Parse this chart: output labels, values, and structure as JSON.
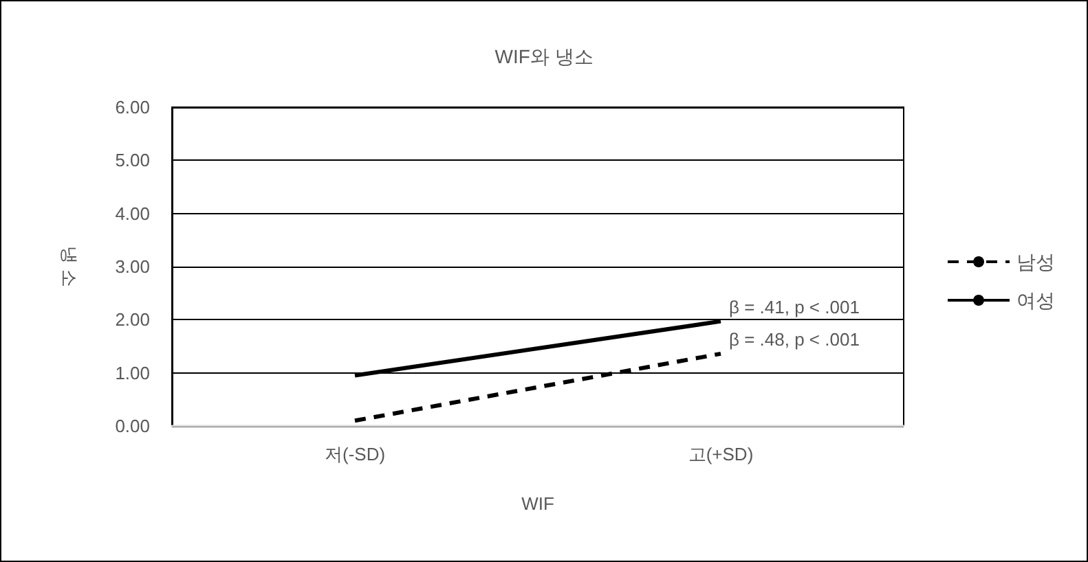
{
  "chart_data": {
    "type": "line",
    "title": "WIF와 냉소",
    "xlabel": "WIF",
    "ylabel": "냉 소",
    "categories": [
      "저(-SD)",
      "고(+SD)"
    ],
    "series": [
      {
        "name": "남성",
        "color": "#000000",
        "line_style": "dashed",
        "values": [
          0.1,
          1.36
        ]
      },
      {
        "name": "여성",
        "color": "#000000",
        "line_style": "solid",
        "values": [
          0.95,
          1.97
        ]
      }
    ],
    "ylim": [
      0,
      6
    ],
    "yticks": [
      {
        "value": 0,
        "label": "0.00"
      },
      {
        "value": 1,
        "label": "1.00"
      },
      {
        "value": 2,
        "label": "2.00"
      },
      {
        "value": 3,
        "label": "3.00"
      },
      {
        "value": 4,
        "label": "4.00"
      },
      {
        "value": 5,
        "label": "5.00"
      },
      {
        "value": 6,
        "label": "6.00"
      }
    ],
    "grid": "y",
    "legend": "right",
    "marker": "none",
    "annotations": [
      {
        "text": "β = .41, p < .001",
        "x": "고(+SD)",
        "y": 1.97
      },
      {
        "text": "β = .48, p < .001",
        "x": "고(+SD)",
        "y": 1.36
      }
    ]
  }
}
